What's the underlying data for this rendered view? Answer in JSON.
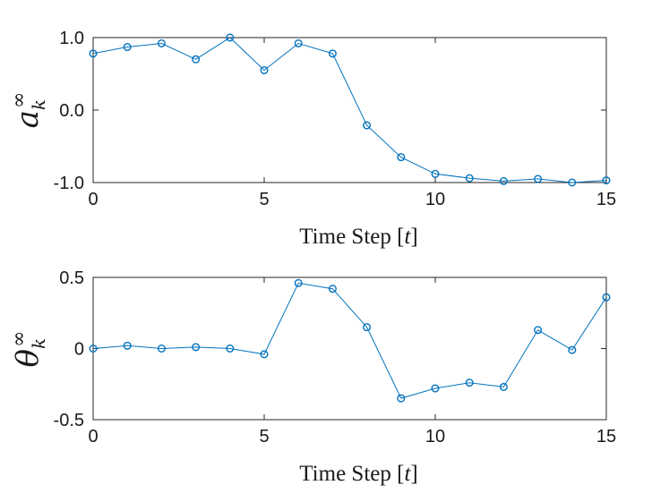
{
  "chart_data": [
    {
      "type": "line",
      "ylabel_base": "a",
      "ylabel_sub": "k",
      "ylabel_sup": "∞",
      "xlabel_text": "Time Step ",
      "xlabel_var": "t",
      "xlim": [
        0,
        15
      ],
      "ylim": [
        -1,
        1
      ],
      "xticks": [
        0,
        5,
        10,
        15
      ],
      "xtick_labels": [
        "0",
        "5",
        "10",
        "15"
      ],
      "yticks": [
        1,
        0,
        -1
      ],
      "ytick_labels": [
        "1.0",
        "0.0",
        "-1.0"
      ],
      "grid": false,
      "marker": "circle",
      "color": "#0072BD",
      "series": [
        {
          "x": [
            0,
            1,
            2,
            3,
            4,
            5,
            6,
            7,
            8,
            9,
            10,
            11,
            12,
            13,
            14,
            15
          ],
          "values": [
            0.78,
            0.87,
            0.92,
            0.7,
            1.0,
            0.55,
            0.92,
            0.78,
            -0.21,
            -0.65,
            -0.88,
            -0.94,
            -0.98,
            -0.95,
            -1.0,
            -0.97
          ]
        }
      ]
    },
    {
      "type": "line",
      "ylabel_base": "θ",
      "ylabel_sub": "k",
      "ylabel_sup": "∞",
      "xlabel_text": "Time Step ",
      "xlabel_var": "t",
      "xlim": [
        0,
        15
      ],
      "ylim": [
        -0.5,
        0.5
      ],
      "xticks": [
        0,
        5,
        10,
        15
      ],
      "xtick_labels": [
        "0",
        "5",
        "10",
        "15"
      ],
      "yticks": [
        0.5,
        0,
        -0.5
      ],
      "ytick_labels": [
        "0.5",
        "0",
        "-0.5"
      ],
      "grid": false,
      "marker": "circle",
      "color": "#0072BD",
      "series": [
        {
          "x": [
            0,
            1,
            2,
            3,
            4,
            5,
            6,
            7,
            8,
            9,
            10,
            11,
            12,
            13,
            14,
            15
          ],
          "values": [
            0.0,
            0.02,
            0.0,
            0.01,
            0.0,
            -0.04,
            0.46,
            0.42,
            0.15,
            -0.35,
            -0.28,
            -0.24,
            -0.27,
            0.13,
            -0.01,
            0.36
          ]
        }
      ]
    }
  ]
}
